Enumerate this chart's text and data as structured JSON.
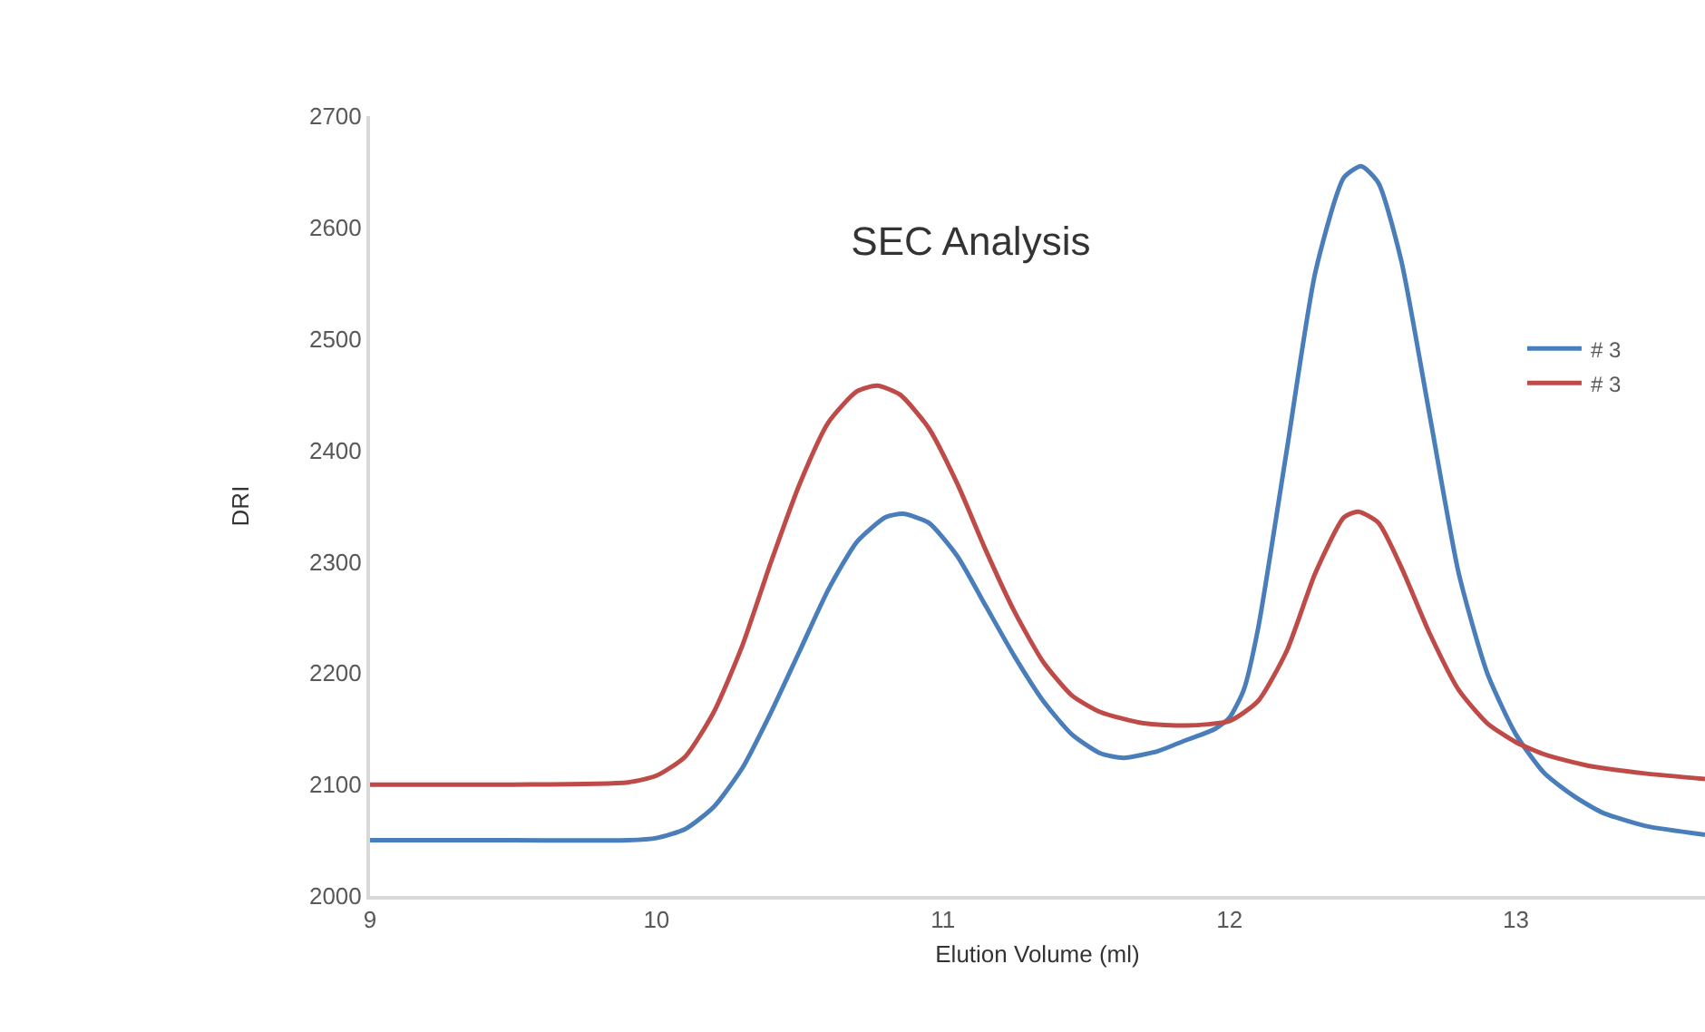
{
  "chart_data": {
    "type": "line",
    "title": "SEC Analysis",
    "xlabel": "Elution Volume (ml)",
    "ylabel": "DRI",
    "xlim": [
      9,
      13.66
    ],
    "xticks": [
      9,
      10,
      11,
      12,
      13
    ],
    "ylim": [
      2000,
      2700
    ],
    "yticks": [
      2000,
      2100,
      2200,
      2300,
      2400,
      2500,
      2600,
      2700
    ],
    "legend": "right",
    "marker": "none",
    "line_style": "solid",
    "series": [
      {
        "name": "# 3",
        "color": "#4a7ebb",
        "x": [
          9.0,
          9.5,
          9.9,
          10.0,
          10.1,
          10.2,
          10.3,
          10.4,
          10.5,
          10.6,
          10.7,
          10.8,
          10.86,
          10.95,
          11.05,
          11.15,
          11.25,
          11.35,
          11.45,
          11.55,
          11.63,
          11.75,
          11.85,
          11.95,
          12.0,
          12.05,
          12.1,
          12.2,
          12.3,
          12.4,
          12.46,
          12.52,
          12.6,
          12.7,
          12.8,
          12.9,
          13.0,
          13.1,
          13.2,
          13.3,
          13.45,
          13.66
        ],
        "values": [
          2050,
          2050,
          2050,
          2052,
          2060,
          2080,
          2115,
          2165,
          2220,
          2275,
          2318,
          2340,
          2343,
          2335,
          2305,
          2260,
          2215,
          2175,
          2145,
          2128,
          2124,
          2130,
          2140,
          2150,
          2160,
          2185,
          2240,
          2400,
          2560,
          2645,
          2655,
          2640,
          2570,
          2430,
          2290,
          2200,
          2145,
          2110,
          2090,
          2075,
          2063,
          2055
        ]
      },
      {
        "name": "# 3",
        "color": "#be4b48",
        "x": [
          9.0,
          9.5,
          9.9,
          10.0,
          10.1,
          10.2,
          10.3,
          10.4,
          10.5,
          10.6,
          10.7,
          10.77,
          10.85,
          10.95,
          11.05,
          11.15,
          11.25,
          11.35,
          11.45,
          11.55,
          11.7,
          11.85,
          12.0,
          12.1,
          12.2,
          12.3,
          12.4,
          12.45,
          12.52,
          12.6,
          12.7,
          12.8,
          12.9,
          13.0,
          13.1,
          13.25,
          13.45,
          13.66
        ],
        "values": [
          2100,
          2100,
          2102,
          2108,
          2125,
          2165,
          2225,
          2300,
          2370,
          2425,
          2453,
          2458,
          2450,
          2420,
          2370,
          2310,
          2255,
          2210,
          2180,
          2165,
          2155,
          2153,
          2157,
          2175,
          2220,
          2290,
          2340,
          2345,
          2335,
          2295,
          2235,
          2185,
          2155,
          2138,
          2127,
          2117,
          2110,
          2105
        ]
      }
    ]
  }
}
